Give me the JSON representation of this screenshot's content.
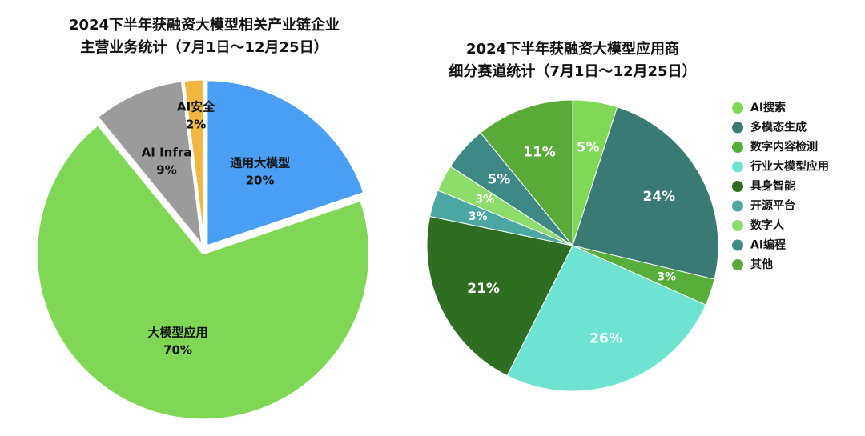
{
  "chart_data": [
    {
      "type": "pie",
      "title": [
        "2024下半年获融资大模型相关产业链企业",
        "主营业务统计（7月1日～12月25日）"
      ],
      "categories": [
        "通用大模型",
        "大模型应用",
        "AI Infra",
        "AI安全"
      ],
      "values": [
        20,
        70,
        9,
        2
      ],
      "value_labels": [
        "20%",
        "70%",
        "9%",
        "2%"
      ],
      "colors": [
        "#4a9ff5",
        "#80d655",
        "#9b9b9b",
        "#f0b840"
      ]
    },
    {
      "type": "pie",
      "title": [
        "2024下半年获融资大模型应用商",
        "细分赛道统计（7月1日～12月25日）"
      ],
      "categories": [
        "AI搜索",
        "多模态生成",
        "数字内容检测",
        "行业大模型应用",
        "具身智能",
        "开源平台",
        "数字人",
        "AI编程",
        "其他"
      ],
      "values": [
        5,
        24,
        3,
        26,
        21,
        3,
        3,
        5,
        11
      ],
      "value_labels": [
        "5%",
        "24%",
        "3%",
        "26%",
        "21%",
        "3%",
        "3%",
        "5%",
        "11%"
      ],
      "colors": [
        "#7fd957",
        "#3a7a75",
        "#57ae3a",
        "#6fe3d1",
        "#2f6e22",
        "#4aa7a1",
        "#8edc6a",
        "#3e8986",
        "#5aaa3a"
      ],
      "legend": "right"
    }
  ]
}
